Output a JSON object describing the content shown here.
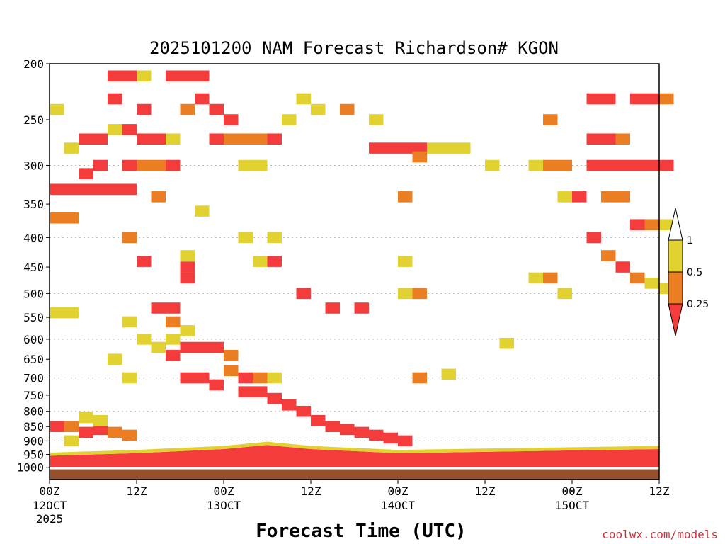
{
  "chart_data": {
    "type": "heatmap",
    "title": "2025101200 NAM Forecast Richardson# KGON",
    "xlabel": "Forecast Time (UTC)",
    "ylabel": "",
    "credit": "coolwx.com/models",
    "y_scale": "log-pressure",
    "ylim": [
      1050,
      200
    ],
    "xlim": [
      0,
      84
    ],
    "y_ticks": [
      200,
      250,
      300,
      350,
      400,
      450,
      500,
      550,
      600,
      650,
      700,
      750,
      800,
      850,
      900,
      950,
      1000
    ],
    "y_ticks_gridlines": [
      300,
      400,
      500,
      600,
      700,
      800,
      900
    ],
    "x_ticks": [
      {
        "hour": 0,
        "label": "00Z",
        "sub1": "12OCT",
        "sub2": "2025"
      },
      {
        "hour": 12,
        "label": "12Z",
        "sub1": "",
        "sub2": ""
      },
      {
        "hour": 24,
        "label": "00Z",
        "sub1": "13OCT",
        "sub2": ""
      },
      {
        "hour": 36,
        "label": "12Z",
        "sub1": "",
        "sub2": ""
      },
      {
        "hour": 48,
        "label": "00Z",
        "sub1": "14OCT",
        "sub2": ""
      },
      {
        "hour": 60,
        "label": "12Z",
        "sub1": "",
        "sub2": ""
      },
      {
        "hour": 72,
        "label": "00Z",
        "sub1": "15OCT",
        "sub2": ""
      },
      {
        "hour": 84,
        "label": "12Z",
        "sub1": "",
        "sub2": ""
      }
    ],
    "colorbar": {
      "labels": [
        "1",
        "0.5",
        "0.25"
      ],
      "levels": [
        0,
        0.25,
        0.5,
        1
      ],
      "colors": {
        "lt_0.25": "#f53c3c",
        "0.25_0.5": "#eb7d23",
        "0.5_1": "#e1d232"
      }
    },
    "colors": {
      "red": "#f53c3c",
      "orange": "#eb7d23",
      "yellow": "#e1d232",
      "ground": "#96502d",
      "grid": "#b4b4b4"
    },
    "cell_hours": 2,
    "cells": [
      {
        "t": 0,
        "p": 850,
        "class": "red"
      },
      {
        "t": 2,
        "p": 850,
        "class": "orange"
      },
      {
        "t": 4,
        "p": 870,
        "class": "red"
      },
      {
        "t": 6,
        "p": 860,
        "class": "red"
      },
      {
        "t": 8,
        "p": 870,
        "class": "orange"
      },
      {
        "t": 10,
        "p": 880,
        "class": "orange"
      },
      {
        "t": 4,
        "p": 820,
        "class": "yellow"
      },
      {
        "t": 6,
        "p": 830,
        "class": "yellow"
      },
      {
        "t": 2,
        "p": 900,
        "class": "yellow"
      },
      {
        "t": 18,
        "p": 620,
        "class": "red"
      },
      {
        "t": 20,
        "p": 620,
        "class": "red"
      },
      {
        "t": 22,
        "p": 620,
        "class": "red"
      },
      {
        "t": 16,
        "p": 640,
        "class": "red"
      },
      {
        "t": 18,
        "p": 700,
        "class": "red"
      },
      {
        "t": 20,
        "p": 700,
        "class": "red"
      },
      {
        "t": 22,
        "p": 720,
        "class": "red"
      },
      {
        "t": 24,
        "p": 680,
        "class": "orange"
      },
      {
        "t": 26,
        "p": 700,
        "class": "red"
      },
      {
        "t": 26,
        "p": 740,
        "class": "red"
      },
      {
        "t": 28,
        "p": 740,
        "class": "red"
      },
      {
        "t": 30,
        "p": 760,
        "class": "red"
      },
      {
        "t": 32,
        "p": 780,
        "class": "red"
      },
      {
        "t": 34,
        "p": 800,
        "class": "red"
      },
      {
        "t": 36,
        "p": 830,
        "class": "red"
      },
      {
        "t": 38,
        "p": 850,
        "class": "red"
      },
      {
        "t": 40,
        "p": 860,
        "class": "red"
      },
      {
        "t": 42,
        "p": 870,
        "class": "red"
      },
      {
        "t": 44,
        "p": 880,
        "class": "red"
      },
      {
        "t": 46,
        "p": 890,
        "class": "red"
      },
      {
        "t": 48,
        "p": 900,
        "class": "red"
      },
      {
        "t": 16,
        "p": 560,
        "class": "orange"
      },
      {
        "t": 16,
        "p": 530,
        "class": "red"
      },
      {
        "t": 14,
        "p": 530,
        "class": "red"
      },
      {
        "t": 16,
        "p": 600,
        "class": "yellow"
      },
      {
        "t": 14,
        "p": 620,
        "class": "yellow"
      },
      {
        "t": 18,
        "p": 580,
        "class": "yellow"
      },
      {
        "t": 24,
        "p": 640,
        "class": "orange"
      },
      {
        "t": 28,
        "p": 700,
        "class": "orange"
      },
      {
        "t": 30,
        "p": 700,
        "class": "yellow"
      },
      {
        "t": 50,
        "p": 700,
        "class": "orange"
      },
      {
        "t": 54,
        "p": 690,
        "class": "yellow"
      },
      {
        "t": 62,
        "p": 610,
        "class": "yellow"
      },
      {
        "t": 0,
        "p": 240,
        "class": "yellow"
      },
      {
        "t": 2,
        "p": 280,
        "class": "yellow"
      },
      {
        "t": 4,
        "p": 270,
        "class": "red"
      },
      {
        "t": 6,
        "p": 270,
        "class": "red"
      },
      {
        "t": 6,
        "p": 300,
        "class": "red"
      },
      {
        "t": 4,
        "p": 310,
        "class": "red"
      },
      {
        "t": 0,
        "p": 330,
        "class": "red"
      },
      {
        "t": 2,
        "p": 330,
        "class": "red"
      },
      {
        "t": 4,
        "p": 330,
        "class": "red"
      },
      {
        "t": 6,
        "p": 330,
        "class": "red"
      },
      {
        "t": 0,
        "p": 370,
        "class": "orange"
      },
      {
        "t": 2,
        "p": 370,
        "class": "orange"
      },
      {
        "t": 8,
        "p": 210,
        "class": "red"
      },
      {
        "t": 10,
        "p": 210,
        "class": "red"
      },
      {
        "t": 8,
        "p": 230,
        "class": "red"
      },
      {
        "t": 10,
        "p": 260,
        "class": "red"
      },
      {
        "t": 12,
        "p": 240,
        "class": "red"
      },
      {
        "t": 12,
        "p": 270,
        "class": "red"
      },
      {
        "t": 14,
        "p": 270,
        "class": "red"
      },
      {
        "t": 10,
        "p": 300,
        "class": "red"
      },
      {
        "t": 12,
        "p": 300,
        "class": "orange"
      },
      {
        "t": 14,
        "p": 300,
        "class": "orange"
      },
      {
        "t": 8,
        "p": 330,
        "class": "red"
      },
      {
        "t": 10,
        "p": 330,
        "class": "red"
      },
      {
        "t": 12,
        "p": 210,
        "class": "yellow"
      },
      {
        "t": 8,
        "p": 260,
        "class": "yellow"
      },
      {
        "t": 14,
        "p": 340,
        "class": "orange"
      },
      {
        "t": 16,
        "p": 270,
        "class": "yellow"
      },
      {
        "t": 16,
        "p": 300,
        "class": "red"
      },
      {
        "t": 18,
        "p": 240,
        "class": "orange"
      },
      {
        "t": 16,
        "p": 210,
        "class": "red"
      },
      {
        "t": 18,
        "p": 210,
        "class": "red"
      },
      {
        "t": 20,
        "p": 230,
        "class": "red"
      },
      {
        "t": 20,
        "p": 210,
        "class": "red"
      },
      {
        "t": 22,
        "p": 240,
        "class": "red"
      },
      {
        "t": 22,
        "p": 270,
        "class": "red"
      },
      {
        "t": 24,
        "p": 270,
        "class": "orange"
      },
      {
        "t": 24,
        "p": 250,
        "class": "red"
      },
      {
        "t": 26,
        "p": 270,
        "class": "orange"
      },
      {
        "t": 26,
        "p": 300,
        "class": "yellow"
      },
      {
        "t": 28,
        "p": 270,
        "class": "orange"
      },
      {
        "t": 28,
        "p": 300,
        "class": "yellow"
      },
      {
        "t": 30,
        "p": 270,
        "class": "red"
      },
      {
        "t": 32,
        "p": 250,
        "class": "yellow"
      },
      {
        "t": 34,
        "p": 230,
        "class": "yellow"
      },
      {
        "t": 36,
        "p": 240,
        "class": "yellow"
      },
      {
        "t": 40,
        "p": 240,
        "class": "orange"
      },
      {
        "t": 44,
        "p": 250,
        "class": "yellow"
      },
      {
        "t": 44,
        "p": 280,
        "class": "red"
      },
      {
        "t": 46,
        "p": 280,
        "class": "red"
      },
      {
        "t": 48,
        "p": 280,
        "class": "red"
      },
      {
        "t": 50,
        "p": 280,
        "class": "red"
      },
      {
        "t": 50,
        "p": 290,
        "class": "orange"
      },
      {
        "t": 52,
        "p": 280,
        "class": "yellow"
      },
      {
        "t": 54,
        "p": 280,
        "class": "yellow"
      },
      {
        "t": 56,
        "p": 280,
        "class": "yellow"
      },
      {
        "t": 48,
        "p": 340,
        "class": "orange"
      },
      {
        "t": 60,
        "p": 300,
        "class": "yellow"
      },
      {
        "t": 66,
        "p": 300,
        "class": "yellow"
      },
      {
        "t": 68,
        "p": 300,
        "class": "orange"
      },
      {
        "t": 70,
        "p": 300,
        "class": "orange"
      },
      {
        "t": 68,
        "p": 250,
        "class": "orange"
      },
      {
        "t": 70,
        "p": 340,
        "class": "yellow"
      },
      {
        "t": 72,
        "p": 340,
        "class": "red"
      },
      {
        "t": 74,
        "p": 230,
        "class": "red"
      },
      {
        "t": 76,
        "p": 230,
        "class": "red"
      },
      {
        "t": 74,
        "p": 270,
        "class": "red"
      },
      {
        "t": 76,
        "p": 270,
        "class": "red"
      },
      {
        "t": 78,
        "p": 270,
        "class": "orange"
      },
      {
        "t": 80,
        "p": 230,
        "class": "red"
      },
      {
        "t": 82,
        "p": 230,
        "class": "red"
      },
      {
        "t": 84,
        "p": 230,
        "class": "orange"
      },
      {
        "t": 74,
        "p": 300,
        "class": "red"
      },
      {
        "t": 76,
        "p": 300,
        "class": "red"
      },
      {
        "t": 78,
        "p": 300,
        "class": "red"
      },
      {
        "t": 80,
        "p": 300,
        "class": "red"
      },
      {
        "t": 82,
        "p": 300,
        "class": "red"
      },
      {
        "t": 84,
        "p": 300,
        "class": "red"
      },
      {
        "t": 76,
        "p": 340,
        "class": "orange"
      },
      {
        "t": 78,
        "p": 340,
        "class": "orange"
      },
      {
        "t": 80,
        "p": 380,
        "class": "red"
      },
      {
        "t": 82,
        "p": 380,
        "class": "orange"
      },
      {
        "t": 84,
        "p": 380,
        "class": "yellow"
      },
      {
        "t": 74,
        "p": 400,
        "class": "red"
      },
      {
        "t": 76,
        "p": 430,
        "class": "orange"
      },
      {
        "t": 78,
        "p": 450,
        "class": "red"
      },
      {
        "t": 80,
        "p": 470,
        "class": "orange"
      },
      {
        "t": 82,
        "p": 480,
        "class": "yellow"
      },
      {
        "t": 84,
        "p": 490,
        "class": "yellow"
      },
      {
        "t": 66,
        "p": 470,
        "class": "yellow"
      },
      {
        "t": 68,
        "p": 470,
        "class": "orange"
      },
      {
        "t": 70,
        "p": 500,
        "class": "yellow"
      },
      {
        "t": 48,
        "p": 440,
        "class": "yellow"
      },
      {
        "t": 48,
        "p": 500,
        "class": "yellow"
      },
      {
        "t": 50,
        "p": 500,
        "class": "orange"
      },
      {
        "t": 34,
        "p": 500,
        "class": "red"
      },
      {
        "t": 38,
        "p": 530,
        "class": "red"
      },
      {
        "t": 42,
        "p": 530,
        "class": "red"
      },
      {
        "t": 30,
        "p": 440,
        "class": "red"
      },
      {
        "t": 18,
        "p": 450,
        "class": "red"
      },
      {
        "t": 18,
        "p": 470,
        "class": "red"
      },
      {
        "t": 12,
        "p": 440,
        "class": "red"
      },
      {
        "t": 10,
        "p": 400,
        "class": "orange"
      },
      {
        "t": 18,
        "p": 430,
        "class": "yellow"
      },
      {
        "t": 26,
        "p": 400,
        "class": "yellow"
      },
      {
        "t": 28,
        "p": 440,
        "class": "yellow"
      },
      {
        "t": 30,
        "p": 400,
        "class": "yellow"
      },
      {
        "t": 20,
        "p": 360,
        "class": "yellow"
      },
      {
        "t": 0,
        "p": 540,
        "class": "yellow"
      },
      {
        "t": 2,
        "p": 540,
        "class": "yellow"
      },
      {
        "t": 10,
        "p": 560,
        "class": "yellow"
      },
      {
        "t": 12,
        "p": 600,
        "class": "yellow"
      },
      {
        "t": 8,
        "p": 650,
        "class": "yellow"
      },
      {
        "t": 10,
        "p": 700,
        "class": "yellow"
      }
    ],
    "surface_band_pressure_approx": [
      920,
      940,
      960,
      980,
      1000
    ]
  }
}
